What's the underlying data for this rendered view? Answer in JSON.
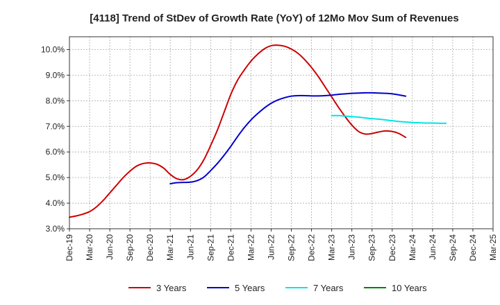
{
  "chart_data": {
    "type": "line",
    "title": "[4118]  Trend of StDev of Growth Rate (YoY) of 12Mo Mov Sum of Revenues",
    "xlabel": "",
    "ylabel": "",
    "ylim": [
      3.0,
      10.5
    ],
    "yticks": [
      3.0,
      4.0,
      5.0,
      6.0,
      7.0,
      8.0,
      9.0,
      10.0
    ],
    "ytick_labels": [
      "3.0%",
      "4.0%",
      "5.0%",
      "6.0%",
      "7.0%",
      "8.0%",
      "9.0%",
      "10.0%"
    ],
    "x_index_range": [
      0,
      63
    ],
    "x_tick_labels": [
      "Dec-19",
      "Mar-20",
      "Jun-20",
      "Sep-20",
      "Dec-20",
      "Mar-21",
      "Jun-21",
      "Sep-21",
      "Dec-21",
      "Mar-22",
      "Jun-22",
      "Sep-22",
      "Dec-22",
      "Mar-23",
      "Jun-23",
      "Sep-23",
      "Dec-23",
      "Mar-24",
      "Jun-24",
      "Sep-24",
      "Dec-24",
      "Mar-25"
    ],
    "x_tick_step": 3,
    "grid": true,
    "legend_position": "bottom",
    "series": [
      {
        "name": "3 Years",
        "color": "#cc0000",
        "start_index": 0,
        "values": [
          3.45,
          3.5,
          3.57,
          3.67,
          3.85,
          4.1,
          4.4,
          4.7,
          5.0,
          5.25,
          5.45,
          5.55,
          5.57,
          5.52,
          5.37,
          5.12,
          4.95,
          4.92,
          5.05,
          5.3,
          5.7,
          6.25,
          6.85,
          7.55,
          8.25,
          8.8,
          9.2,
          9.55,
          9.82,
          10.03,
          10.15,
          10.17,
          10.13,
          10.02,
          9.85,
          9.6,
          9.3,
          8.95,
          8.55,
          8.15,
          7.75,
          7.38,
          7.05,
          6.8,
          6.7,
          6.72,
          6.78,
          6.82,
          6.8,
          6.72,
          6.57
        ]
      },
      {
        "name": "5 Years",
        "color": "#0000cc",
        "start_index": 15,
        "values": [
          4.76,
          4.8,
          4.81,
          4.82,
          4.88,
          5.02,
          5.27,
          5.55,
          5.87,
          6.22,
          6.6,
          6.95,
          7.25,
          7.5,
          7.72,
          7.9,
          8.03,
          8.12,
          8.18,
          8.2,
          8.2,
          8.19,
          8.19,
          8.2,
          8.22,
          8.25,
          8.27,
          8.29,
          8.3,
          8.31,
          8.31,
          8.3,
          8.29,
          8.27,
          8.23,
          8.18
        ]
      },
      {
        "name": "7 Years",
        "color": "#00e5e5",
        "start_index": 39,
        "values": [
          7.42,
          7.42,
          7.4,
          7.38,
          7.36,
          7.33,
          7.3,
          7.28,
          7.25,
          7.22,
          7.19,
          7.17,
          7.15,
          7.14,
          7.13,
          7.13,
          7.12,
          7.12
        ]
      },
      {
        "name": "10 Years",
        "color": "#008000",
        "start_index": 0,
        "values": []
      }
    ]
  }
}
